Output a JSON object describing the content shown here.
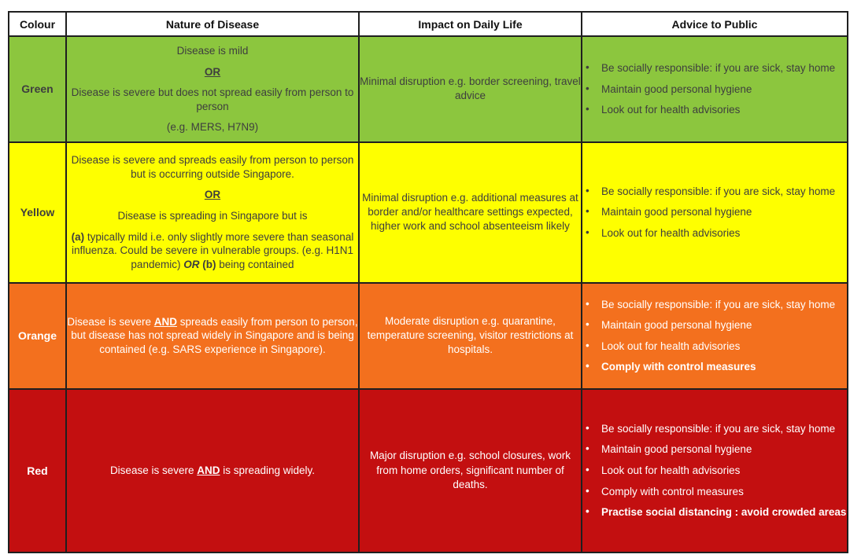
{
  "table": {
    "headers": [
      "Colour",
      "Nature of Disease",
      "Impact on Daily Life",
      "Advice to Public"
    ],
    "colors": {
      "header_bg": "#FFFFFF",
      "header_text": "#111111",
      "border": "#1F1F1F",
      "green_bg": "#8CC63E",
      "yellow_bg": "#FEFF00",
      "orange_bg": "#F3701E",
      "red_bg": "#C30F10",
      "dark_text": "#3E3E3E",
      "light_text": "#FFFFFF"
    },
    "rows": [
      {
        "colour": "Green",
        "bg": "#8CC63E",
        "text_color": "#3E3E3E",
        "nature": [
          [
            {
              "t": "Disease is mild"
            }
          ],
          [
            {
              "t": "OR",
              "b": true,
              "u": true
            }
          ],
          [
            {
              "t": "Disease is severe but does not spread easily from person to person"
            }
          ],
          [
            {
              "t": "(e.g. MERS, H7N9)"
            }
          ]
        ],
        "impact": "Minimal disruption e.g. border screening, travel advice",
        "advice": [
          {
            "text": "Be socially responsible:  if you are sick, stay home",
            "bold": false
          },
          {
            "text": "Maintain good personal hygiene",
            "bold": false
          },
          {
            "text": "Look out for health advisories",
            "bold": false
          }
        ]
      },
      {
        "colour": "Yellow",
        "bg": "#FEFF00",
        "text_color": "#3E3E3E",
        "nature": [
          [
            {
              "t": "Disease is severe and spreads easily from person to person but is occurring outside Singapore."
            }
          ],
          [
            {
              "t": "OR",
              "b": true,
              "u": true
            }
          ],
          [
            {
              "t": "Disease is spreading in Singapore but is"
            }
          ],
          [
            {
              "t": "(a)",
              "b": true
            },
            {
              "t": " typically mild i.e. only slightly more severe than seasonal influenza. Could be severe in vulnerable groups. (e.g. H1N1 pandemic) "
            },
            {
              "t": "OR",
              "b": true,
              "i": true
            },
            {
              "t": " "
            },
            {
              "t": "(b)",
              "b": true
            },
            {
              "t": " being contained"
            }
          ]
        ],
        "impact": "Minimal disruption e.g. additional measures at border and/or healthcare settings expected, higher work and school absenteeism likely",
        "advice": [
          {
            "text": "Be socially responsible:  if you are sick, stay home",
            "bold": false
          },
          {
            "text": "Maintain good personal hygiene",
            "bold": false
          },
          {
            "text": "Look out for health advisories",
            "bold": false
          }
        ]
      },
      {
        "colour": "Orange",
        "bg": "#F3701E",
        "text_color": "#FFFFFF",
        "nature": [
          [
            {
              "t": "Disease is severe "
            },
            {
              "t": "AND",
              "b": true,
              "u": true
            },
            {
              "t": " spreads easily from person to person, but disease has not spread widely in Singapore and is being contained (e.g. SARS experience in Singapore)."
            }
          ]
        ],
        "impact": "Moderate disruption e.g. quarantine, temperature screening, visitor restrictions at hospitals.",
        "advice": [
          {
            "text": "Be socially responsible:  if you are sick, stay home",
            "bold": false
          },
          {
            "text": "Maintain good personal hygiene",
            "bold": false
          },
          {
            "text": "Look out for health advisories",
            "bold": false
          },
          {
            "text": "Comply with control measures",
            "bold": true
          }
        ]
      },
      {
        "colour": "Red",
        "bg": "#C30F10",
        "text_color": "#FFFFFF",
        "nature": [
          [
            {
              "t": "Disease is severe "
            },
            {
              "t": "AND",
              "b": true,
              "u": true
            },
            {
              "t": " is spreading widely."
            }
          ]
        ],
        "impact": "Major disruption e.g. school closures, work from home orders, significant number of deaths.",
        "advice": [
          {
            "text": "Be socially responsible:  if you are sick, stay home",
            "bold": false
          },
          {
            "text": "Maintain good personal hygiene",
            "bold": false
          },
          {
            "text": "Look out for health advisories",
            "bold": false
          },
          {
            "text": "Comply with control measures",
            "bold": false
          },
          {
            "text": "Practise social distancing : avoid crowded areas",
            "bold": true
          }
        ]
      }
    ]
  }
}
